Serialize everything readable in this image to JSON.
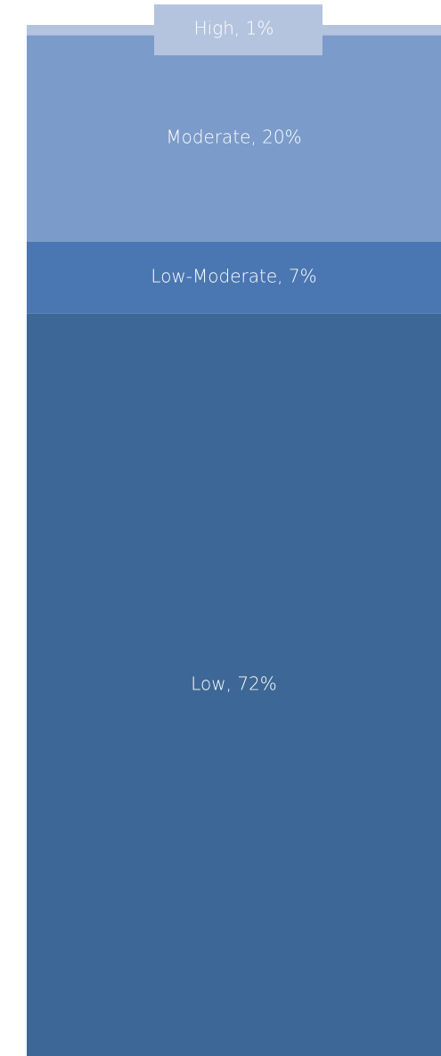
{
  "chart_data": {
    "type": "stacked-bar",
    "series": [
      {
        "color": "#3d6796",
        "values": [
          72
        ],
        "value_labels": [
          "Low, 72%"
        ]
      },
      {
        "color": "#4a77b2",
        "values": [
          7
        ],
        "value_labels": [
          "Low-Moderate, 7%"
        ]
      },
      {
        "color": "#7b9bca",
        "values": [
          20
        ],
        "value_labels": [
          "Moderate, 20%"
        ]
      },
      {
        "color": "#b4c3de",
        "values": [
          1
        ],
        "value_labels": [
          "High, 1%"
        ]
      }
    ]
  }
}
